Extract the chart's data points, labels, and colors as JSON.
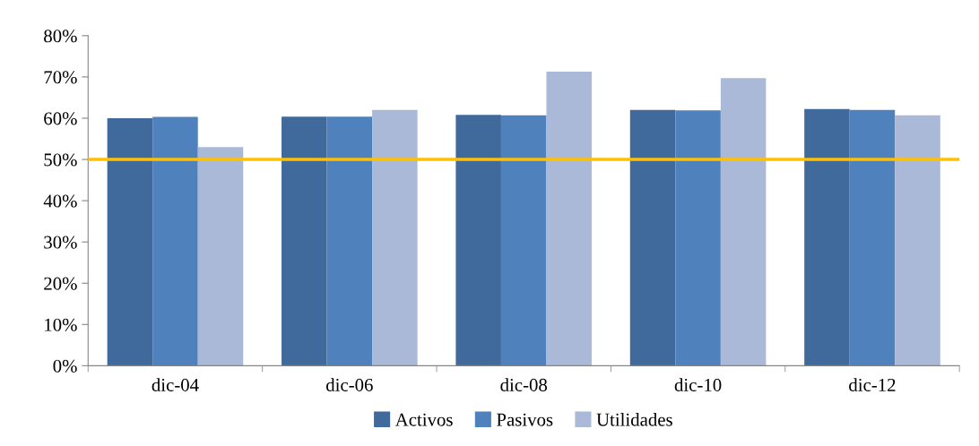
{
  "chart_data": {
    "type": "bar",
    "categories": [
      "dic-04",
      "dic-06",
      "dic-08",
      "dic-10",
      "dic-12"
    ],
    "series": [
      {
        "name": "Activos",
        "color": "#416a9c",
        "values": [
          60.0,
          60.4,
          60.8,
          62.0,
          62.2
        ]
      },
      {
        "name": "Pasivos",
        "color": "#4f81bd",
        "values": [
          60.3,
          60.4,
          60.7,
          61.9,
          62.0
        ]
      },
      {
        "name": "Utilidades",
        "color": "#aab9d7",
        "values": [
          53.0,
          62.0,
          71.3,
          69.7,
          60.7
        ]
      }
    ],
    "ylim": [
      0,
      80
    ],
    "yticks": [
      {
        "value": 0,
        "label": "0%"
      },
      {
        "value": 10,
        "label": "10%"
      },
      {
        "value": 20,
        "label": "20%"
      },
      {
        "value": 30,
        "label": "30%"
      },
      {
        "value": 40,
        "label": "40%"
      },
      {
        "value": 50,
        "label": "50%"
      },
      {
        "value": 60,
        "label": "60%"
      },
      {
        "value": 70,
        "label": "70%"
      },
      {
        "value": 80,
        "label": "80%"
      }
    ],
    "ref_lines": [
      {
        "axis": "y",
        "value": 50,
        "color": "#ffc000",
        "line_style": "solid"
      }
    ],
    "grid": false,
    "legend": "bottom"
  }
}
